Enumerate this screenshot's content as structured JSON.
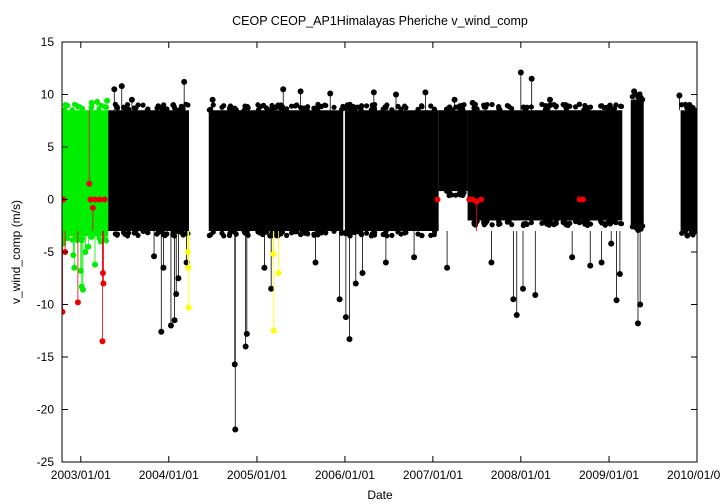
{
  "chart_data": {
    "type": "scatter",
    "title": "CEOP CEOP_AP1Himalayas Pheriche  v_wind_comp",
    "xlabel": "Date",
    "ylabel": "v_wind_comp (m/s)",
    "xlim": [
      "2002-10-15",
      "2010-01-01"
    ],
    "ylim": [
      -25,
      15
    ],
    "yticks": [
      15,
      10,
      5,
      0,
      -5,
      -10,
      -15,
      -20,
      -25
    ],
    "xticks": [
      {
        "date": "2003-01-01",
        "label": "2003/01/01"
      },
      {
        "date": "2004-01-01",
        "label": "2004/01/01"
      },
      {
        "date": "2005-01-01",
        "label": "2005/01/01"
      },
      {
        "date": "2006-01-01",
        "label": "2006/01/01"
      },
      {
        "date": "2007-01-01",
        "label": "2007/01/01"
      },
      {
        "date": "2008-01-01",
        "label": "2008/01/01"
      },
      {
        "date": "2009-01-01",
        "label": "2009/01/01"
      },
      {
        "date": "2010-01-01",
        "label": "2010/01/01"
      }
    ],
    "grid": false,
    "legend": "none",
    "colors": {
      "good": "#000000",
      "questionable": "#00ee00",
      "bad": "#ee0000",
      "estimated": "#ffff00"
    },
    "series": [
      {
        "flag": "questionable",
        "color": "#00ee00",
        "bands": [
          {
            "start": "2002-10-17",
            "end": "2003-04-25",
            "low": -3.5,
            "high": 8.5
          }
        ],
        "outliers": [
          {
            "date": "2002-10-20",
            "value": -4.2
          },
          {
            "date": "2002-10-30",
            "value": 9.0
          },
          {
            "date": "2002-11-15",
            "value": -3.0
          },
          {
            "date": "2002-12-01",
            "value": -5.3
          },
          {
            "date": "2002-12-05",
            "value": -6.5
          },
          {
            "date": "2003-01-01",
            "value": -6.8
          },
          {
            "date": "2003-01-05",
            "value": -8.3
          },
          {
            "date": "2003-01-10",
            "value": -8.6
          },
          {
            "date": "2003-01-20",
            "value": -5.0
          },
          {
            "date": "2003-02-01",
            "value": -4.5
          },
          {
            "date": "2003-02-15",
            "value": 9.2
          },
          {
            "date": "2003-03-01",
            "value": -6.2
          },
          {
            "date": "2003-03-10",
            "value": 9.3
          },
          {
            "date": "2003-03-25",
            "value": -4.0
          },
          {
            "date": "2003-04-10",
            "value": -3.8
          },
          {
            "date": "2003-04-20",
            "value": 9.4
          }
        ]
      },
      {
        "flag": "good",
        "color": "#000000",
        "bands": [
          {
            "start": "2003-04-25",
            "end": "2004-03-25",
            "low": -3.0,
            "high": 8.5
          },
          {
            "start": "2004-06-15",
            "end": "2005-12-25",
            "low": -3.0,
            "high": 8.5
          },
          {
            "start": "2006-01-01",
            "end": "2007-01-25",
            "low": -3.0,
            "high": 8.5
          },
          {
            "start": "2007-01-25",
            "end": "2007-05-25",
            "low": 0.8,
            "high": 8.5
          },
          {
            "start": "2007-05-25",
            "end": "2009-02-25",
            "low": -2.0,
            "high": 8.5
          },
          {
            "start": "2009-04-01",
            "end": "2009-05-25",
            "low": -2.5,
            "high": 9.5
          },
          {
            "start": "2009-10-25",
            "end": "2010-01-01",
            "low": -3.0,
            "high": 8.5
          }
        ],
        "outliers": [
          {
            "date": "2003-05-20",
            "value": 10.5
          },
          {
            "date": "2003-06-20",
            "value": 10.8
          },
          {
            "date": "2003-08-01",
            "value": 9.5
          },
          {
            "date": "2003-11-01",
            "value": -5.4
          },
          {
            "date": "2003-12-01",
            "value": -12.6
          },
          {
            "date": "2003-12-10",
            "value": -6.5
          },
          {
            "date": "2004-01-10",
            "value": -12.0
          },
          {
            "date": "2004-01-25",
            "value": -11.5
          },
          {
            "date": "2004-02-01",
            "value": -9.0
          },
          {
            "date": "2004-02-10",
            "value": -7.5
          },
          {
            "date": "2004-03-05",
            "value": 11.2
          },
          {
            "date": "2004-03-15",
            "value": -6.0
          },
          {
            "date": "2004-07-01",
            "value": 9.5
          },
          {
            "date": "2004-10-01",
            "value": -15.7
          },
          {
            "date": "2004-10-03",
            "value": -21.9
          },
          {
            "date": "2004-11-15",
            "value": -14.0
          },
          {
            "date": "2004-11-20",
            "value": -12.8
          },
          {
            "date": "2005-02-01",
            "value": -6.5
          },
          {
            "date": "2005-03-01",
            "value": -8.5
          },
          {
            "date": "2005-04-20",
            "value": 10.5
          },
          {
            "date": "2005-07-01",
            "value": 10.3
          },
          {
            "date": "2005-09-01",
            "value": -6.0
          },
          {
            "date": "2005-11-01",
            "value": 10.1
          },
          {
            "date": "2005-12-10",
            "value": -9.5
          },
          {
            "date": "2006-01-05",
            "value": -11.2
          },
          {
            "date": "2006-01-20",
            "value": -13.3
          },
          {
            "date": "2006-02-15",
            "value": -8.0
          },
          {
            "date": "2006-03-15",
            "value": -7.0
          },
          {
            "date": "2006-05-01",
            "value": 10.2
          },
          {
            "date": "2006-06-20",
            "value": -6.0
          },
          {
            "date": "2006-08-01",
            "value": 10.0
          },
          {
            "date": "2006-10-15",
            "value": -5.5
          },
          {
            "date": "2006-12-01",
            "value": 10.2
          },
          {
            "date": "2007-03-01",
            "value": -6.5
          },
          {
            "date": "2007-04-01",
            "value": 9.5
          },
          {
            "date": "2007-06-15",
            "value": 9.2
          },
          {
            "date": "2007-09-01",
            "value": -6.0
          },
          {
            "date": "2007-12-01",
            "value": -9.5
          },
          {
            "date": "2007-12-15",
            "value": -11.0
          },
          {
            "date": "2008-01-01",
            "value": 12.1
          },
          {
            "date": "2008-01-10",
            "value": -8.5
          },
          {
            "date": "2008-02-15",
            "value": 11.5
          },
          {
            "date": "2008-03-01",
            "value": -9.1
          },
          {
            "date": "2008-05-01",
            "value": 9.5
          },
          {
            "date": "2008-08-01",
            "value": -5.5
          },
          {
            "date": "2008-10-15",
            "value": -6.3
          },
          {
            "date": "2008-12-01",
            "value": -6.0
          },
          {
            "date": "2009-01-10",
            "value": -4.2
          },
          {
            "date": "2009-02-01",
            "value": -9.6
          },
          {
            "date": "2009-02-15",
            "value": -7.1
          },
          {
            "date": "2009-04-15",
            "value": 10.3
          },
          {
            "date": "2009-05-01",
            "value": -11.8
          },
          {
            "date": "2009-05-10",
            "value": -10.0
          },
          {
            "date": "2009-10-20",
            "value": 9.9
          },
          {
            "date": "2009-12-01",
            "value": 9.0
          }
        ]
      },
      {
        "flag": "estimated",
        "color": "#ffff00",
        "bands": [],
        "outliers": [
          {
            "date": "2004-03-20",
            "value": -5.0
          },
          {
            "date": "2004-03-22",
            "value": -6.5
          },
          {
            "date": "2004-03-24",
            "value": -10.3
          },
          {
            "date": "2005-03-10",
            "value": -5.2
          },
          {
            "date": "2005-03-12",
            "value": -12.5
          },
          {
            "date": "2005-04-01",
            "value": -7.0
          }
        ]
      },
      {
        "flag": "bad",
        "color": "#ee0000",
        "bands": [],
        "outliers": [
          {
            "date": "2002-10-17",
            "value": -10.7
          },
          {
            "date": "2002-10-20",
            "value": 0.0
          },
          {
            "date": "2002-10-28",
            "value": -5.0
          },
          {
            "date": "2002-12-20",
            "value": -9.8
          },
          {
            "date": "2003-02-05",
            "value": 1.5
          },
          {
            "date": "2003-02-10",
            "value": 0.0
          },
          {
            "date": "2003-02-20",
            "value": -0.8
          },
          {
            "date": "2003-03-01",
            "value": 0.0
          },
          {
            "date": "2003-03-20",
            "value": 0.0
          },
          {
            "date": "2003-04-01",
            "value": -13.5
          },
          {
            "date": "2003-04-03",
            "value": -7.0
          },
          {
            "date": "2003-04-05",
            "value": -8.0
          },
          {
            "date": "2003-04-10",
            "value": 0.0
          },
          {
            "date": "2007-01-20",
            "value": 0.0
          },
          {
            "date": "2007-06-01",
            "value": 0.0
          },
          {
            "date": "2007-06-15",
            "value": 0.0
          },
          {
            "date": "2007-07-01",
            "value": -0.2
          },
          {
            "date": "2007-07-20",
            "value": 0.0
          },
          {
            "date": "2008-09-01",
            "value": 0.0
          },
          {
            "date": "2008-09-15",
            "value": 0.0
          }
        ]
      }
    ]
  }
}
